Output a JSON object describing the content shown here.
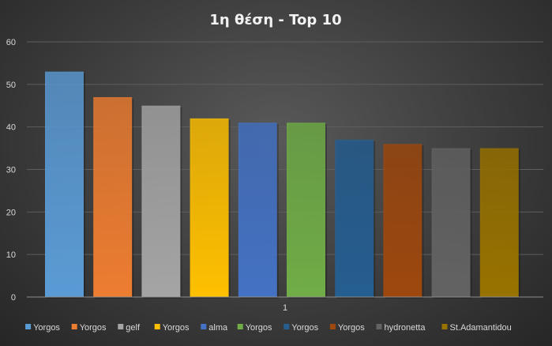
{
  "chart_data": {
    "type": "bar",
    "title": "1η θέση - Top 10",
    "xlabel": "",
    "ylabel": "",
    "categories": [
      "1"
    ],
    "ylim": [
      0,
      60
    ],
    "yticks": [
      0,
      10,
      20,
      30,
      40,
      50,
      60
    ],
    "grid": true,
    "legend": "bottom",
    "series": [
      {
        "name": "Yorgos",
        "values": [
          53
        ],
        "color": "#5b9bd5"
      },
      {
        "name": "Yorgos",
        "values": [
          47
        ],
        "color": "#ed7d31"
      },
      {
        "name": "gelf",
        "values": [
          45
        ],
        "color": "#a5a5a5"
      },
      {
        "name": "Yorgos",
        "values": [
          42
        ],
        "color": "#ffc000"
      },
      {
        "name": "alma",
        "values": [
          41
        ],
        "color": "#4472c4"
      },
      {
        "name": "Yorgos",
        "values": [
          41
        ],
        "color": "#70ad47"
      },
      {
        "name": "Yorgos",
        "values": [
          37
        ],
        "color": "#255e91"
      },
      {
        "name": "Yorgos",
        "values": [
          36
        ],
        "color": "#9e480e"
      },
      {
        "name": "hydronetta",
        "values": [
          35
        ],
        "color": "#636363"
      },
      {
        "name": "St.Adamantidou",
        "values": [
          35
        ],
        "color": "#997300"
      }
    ]
  }
}
